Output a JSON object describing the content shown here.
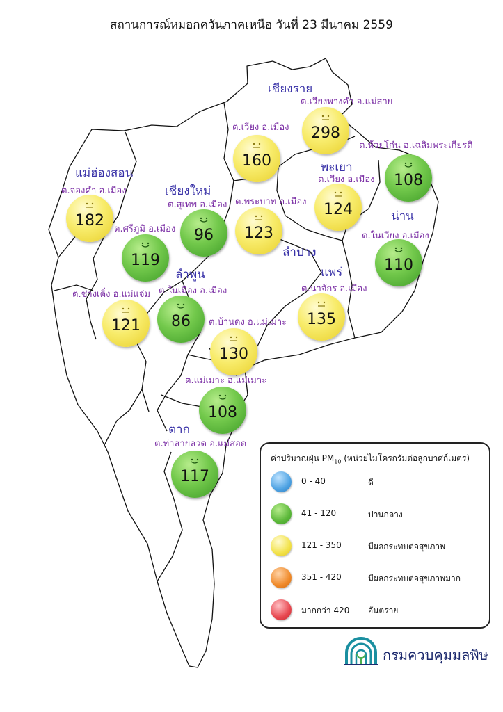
{
  "title": "สถานการณ์หมอกควันภาคเหนือ วันที่ 23 มีนาคม 2559",
  "provinces": [
    {
      "name": "เชียงราย"
    },
    {
      "name": "แม่ฮ่องสอน"
    },
    {
      "name": "เชียงใหม่"
    },
    {
      "name": "พะเยา"
    },
    {
      "name": "น่าน"
    },
    {
      "name": "ลำปาง"
    },
    {
      "name": "ลำพูน"
    },
    {
      "name": "แพร่"
    },
    {
      "name": "ตาก"
    }
  ],
  "stations": [
    {
      "location": "ต.เวียงพางคำ อ.แม่สาย",
      "value": 298,
      "level": "yellow"
    },
    {
      "location": "ต.เวียง อ.เมือง",
      "value": 160,
      "level": "yellow"
    },
    {
      "location": "ต.ห้วยโก๋น อ.เฉลิมพระเกียรติ",
      "value": 108,
      "level": "green"
    },
    {
      "location": "ต.เวียง อ.เมือง",
      "value": 124,
      "level": "yellow"
    },
    {
      "location": "ต.จองคำ อ.เมือง",
      "value": 182,
      "level": "yellow"
    },
    {
      "location": "ต.สุเทพ อ.เมือง",
      "value": 96,
      "level": "green"
    },
    {
      "location": "ต.พระบาท อ.เมือง",
      "value": 123,
      "level": "yellow"
    },
    {
      "location": "ต.ศรีภูมิ อ.เมือง",
      "value": 119,
      "level": "green"
    },
    {
      "location": "ต.ในเวียง อ.เมือง",
      "value": 110,
      "level": "green"
    },
    {
      "location": "ต.ช่างเคิ่ง อ.แม่แจ่ม",
      "value": 121,
      "level": "yellow"
    },
    {
      "location": "ต.ในเมือง อ.เมือง",
      "value": 86,
      "level": "green"
    },
    {
      "location": "ต.นาจักร อ.เมือง",
      "value": 135,
      "level": "yellow"
    },
    {
      "location": "ต.บ้านดง อ.แม่เมาะ",
      "value": 130,
      "level": "yellow"
    },
    {
      "location": "ต.แม่เมาะ อ.แม่เมาะ",
      "value": 108,
      "level": "green"
    },
    {
      "location": "ต.ท่าสายลวด อ.แม่สอด",
      "value": 117,
      "level": "green"
    }
  ],
  "legend": {
    "title": "ค่าปริมาณฝุ่น PM10 (หน่วยไมโครกรัมต่อลูกบาศก์เมตร)",
    "items": [
      {
        "range": "0 - 40",
        "label": "ดี",
        "color": "#4fa3e3"
      },
      {
        "range": "41 - 120",
        "label": "ปานกลาง",
        "color": "#5cb83a"
      },
      {
        "range": "121 - 350",
        "label": "มีผลกระทบต่อสุขภาพ",
        "color": "#f2e24a"
      },
      {
        "range": "351 - 420",
        "label": "มีผลกระทบต่อสุขภาพมาก",
        "color": "#f08a2a"
      },
      {
        "range": "มากกว่า 420",
        "label": "อันตราย",
        "color": "#e84850"
      }
    ]
  },
  "logo": {
    "text": "กรมควบคุมมลพิษ",
    "icon": "pcd-arch-icon"
  }
}
